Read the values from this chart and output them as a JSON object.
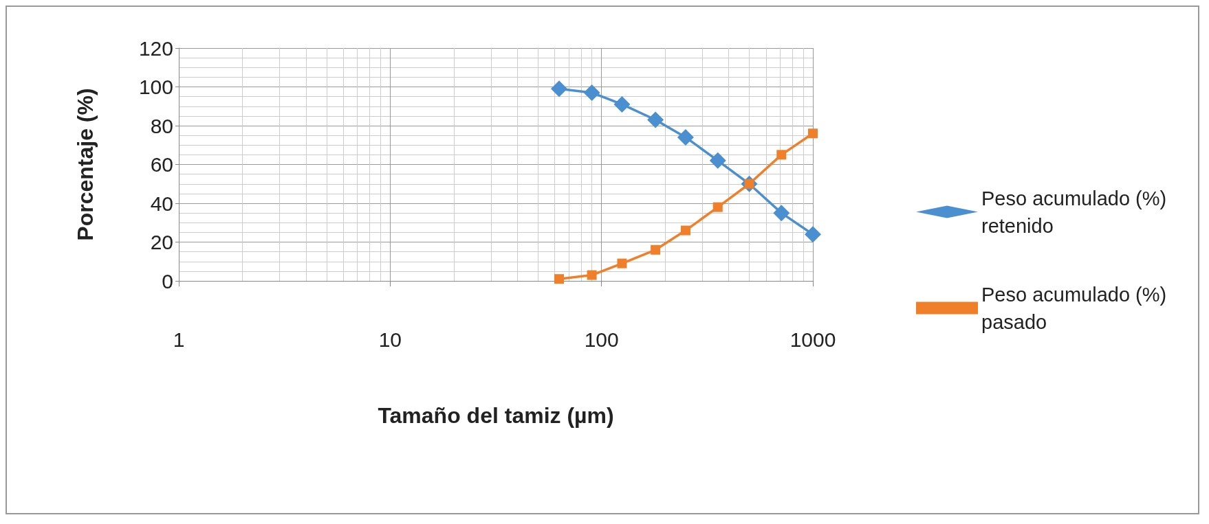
{
  "chart_data": {
    "type": "line",
    "xlabel": "Tamaño del tamiz (µm)",
    "ylabel": "Porcentaje (%)",
    "xlim": [
      1,
      1000
    ],
    "xticks": [
      1,
      10,
      100,
      1000
    ],
    "ylim": [
      0,
      120
    ],
    "yticks": [
      0,
      20,
      40,
      60,
      80,
      100,
      120
    ],
    "log": "x",
    "grid": true,
    "legend": "right",
    "series": [
      {
        "name": "Peso acumulado (%) retenido",
        "color": "#4a8fd0",
        "marker": "diamond",
        "x": [
          63,
          90,
          125,
          180,
          250,
          355,
          500,
          710,
          1000
        ],
        "values": [
          99,
          97,
          91,
          83,
          74,
          62,
          50,
          35,
          24
        ]
      },
      {
        "name": "Peso acumulado (%) pasado",
        "color": "#f07f2a",
        "marker": "square",
        "x": [
          63,
          90,
          125,
          180,
          250,
          355,
          500,
          710,
          1000
        ],
        "values": [
          1,
          3,
          9,
          16,
          26,
          38,
          50,
          65,
          76
        ]
      }
    ]
  }
}
